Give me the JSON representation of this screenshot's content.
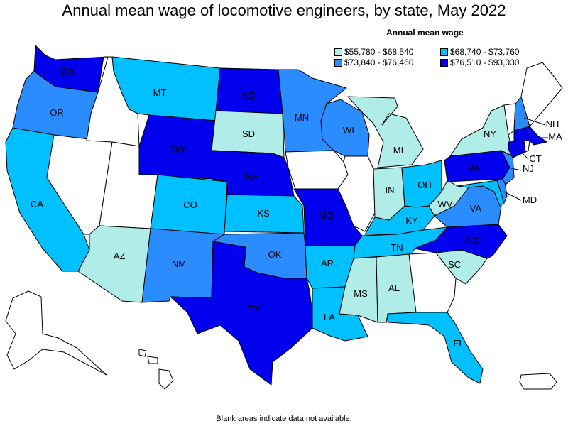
{
  "title": "Annual mean wage of locomotive engineers, by state, May 2022",
  "legend": {
    "title": "Annual mean wage",
    "items": [
      {
        "label": "$55,780 - $68,540",
        "color": "#b0ece8"
      },
      {
        "label": "$68,740 - $73,760",
        "color": "#00c0ff"
      },
      {
        "label": "$73,840 - $76,460",
        "color": "#2a8cff"
      },
      {
        "label": "$76,510 - $93,030",
        "color": "#0000ee"
      }
    ]
  },
  "footnote": "Blank areas indicate data not available.",
  "states": {
    "WA": {
      "label": "WA",
      "tier": 4
    },
    "OR": {
      "label": "OR",
      "tier": 3
    },
    "CA": {
      "label": "CA",
      "tier": 2
    },
    "NV": {
      "label": "",
      "tier": 0
    },
    "ID": {
      "label": "",
      "tier": 0
    },
    "MT": {
      "label": "MT",
      "tier": 2
    },
    "WY": {
      "label": "WY",
      "tier": 4
    },
    "UT": {
      "label": "",
      "tier": 0
    },
    "AZ": {
      "label": "AZ",
      "tier": 1
    },
    "CO": {
      "label": "CO",
      "tier": 2
    },
    "NM": {
      "label": "NM",
      "tier": 3
    },
    "ND": {
      "label": "ND",
      "tier": 4
    },
    "SD": {
      "label": "SD",
      "tier": 1
    },
    "NE": {
      "label": "NE",
      "tier": 4
    },
    "KS": {
      "label": "KS",
      "tier": 2
    },
    "OK": {
      "label": "OK",
      "tier": 3
    },
    "TX": {
      "label": "TX",
      "tier": 4
    },
    "MN": {
      "label": "MN",
      "tier": 3
    },
    "IA": {
      "label": "",
      "tier": 0
    },
    "MO": {
      "label": "MO",
      "tier": 4
    },
    "AR": {
      "label": "AR",
      "tier": 2
    },
    "LA": {
      "label": "LA",
      "tier": 2
    },
    "WI": {
      "label": "WI",
      "tier": 3
    },
    "IL": {
      "label": "",
      "tier": 0
    },
    "MI": {
      "label": "MI",
      "tier": 1
    },
    "IN": {
      "label": "IN",
      "tier": 1
    },
    "OH": {
      "label": "OH",
      "tier": 2
    },
    "KY": {
      "label": "KY",
      "tier": 2
    },
    "TN": {
      "label": "TN",
      "tier": 2
    },
    "MS": {
      "label": "MS",
      "tier": 1
    },
    "AL": {
      "label": "AL",
      "tier": 1
    },
    "GA": {
      "label": "",
      "tier": 0
    },
    "FL": {
      "label": "FL",
      "tier": 2
    },
    "SC": {
      "label": "SC",
      "tier": 1
    },
    "NC": {
      "label": "NC",
      "tier": 4
    },
    "VA": {
      "label": "VA",
      "tier": 3
    },
    "WV": {
      "label": "WV",
      "tier": 1
    },
    "PA": {
      "label": "PA",
      "tier": 4
    },
    "NY": {
      "label": "NY",
      "tier": 1
    },
    "ME": {
      "label": "",
      "tier": 0
    },
    "NH": {
      "label": "NH",
      "tier": 3
    },
    "VT": {
      "label": "",
      "tier": 0
    },
    "MA": {
      "label": "MA",
      "tier": 4
    },
    "CT": {
      "label": "CT",
      "tier": 4
    },
    "NJ": {
      "label": "NJ",
      "tier": 3
    },
    "MD": {
      "label": "MD",
      "tier": 2
    },
    "DE": {
      "label": "",
      "tier": 3
    },
    "AK": {
      "label": "",
      "tier": 0
    },
    "HI": {
      "label": "",
      "tier": 0
    },
    "PR": {
      "label": "",
      "tier": 0
    }
  }
}
